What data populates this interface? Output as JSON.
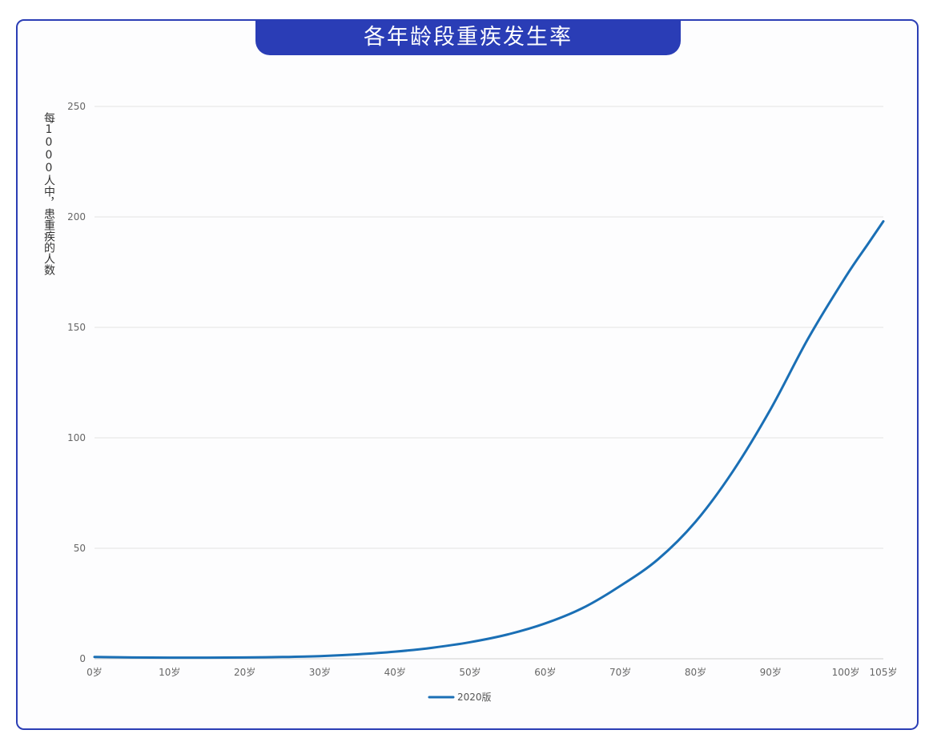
{
  "chart_data": {
    "type": "line",
    "title": "各年龄段重疾发生率",
    "ylabel": "每1000人中，患重疾的人数",
    "xlabel": "",
    "ylim": [
      0,
      250
    ],
    "yticks": [
      0,
      50,
      100,
      150,
      200,
      250
    ],
    "xlim": [
      0,
      105
    ],
    "xticks": [
      {
        "value": 0,
        "label": "0岁"
      },
      {
        "value": 10,
        "label": "10岁"
      },
      {
        "value": 20,
        "label": "20岁"
      },
      {
        "value": 30,
        "label": "30岁"
      },
      {
        "value": 40,
        "label": "40岁"
      },
      {
        "value": 50,
        "label": "50岁"
      },
      {
        "value": 60,
        "label": "60岁"
      },
      {
        "value": 70,
        "label": "70岁"
      },
      {
        "value": 80,
        "label": "80岁"
      },
      {
        "value": 90,
        "label": "90岁"
      },
      {
        "value": 100,
        "label": "100岁"
      },
      {
        "value": 105,
        "label": "105岁"
      }
    ],
    "grid": "horizontal",
    "legend_position": "bottom-center",
    "series": [
      {
        "name": "2020版",
        "color": "#1a6fb5",
        "x": [
          0,
          5,
          10,
          15,
          20,
          25,
          30,
          35,
          40,
          45,
          50,
          55,
          60,
          65,
          70,
          75,
          80,
          85,
          90,
          95,
          100,
          103,
          105
        ],
        "y": [
          0.8,
          0.6,
          0.5,
          0.5,
          0.6,
          0.8,
          1.2,
          2.0,
          3.2,
          5.0,
          7.5,
          11.0,
          16.0,
          23.0,
          33.0,
          45.0,
          62.0,
          85.0,
          113.0,
          145.0,
          173.0,
          188.0,
          198.0
        ]
      }
    ]
  }
}
